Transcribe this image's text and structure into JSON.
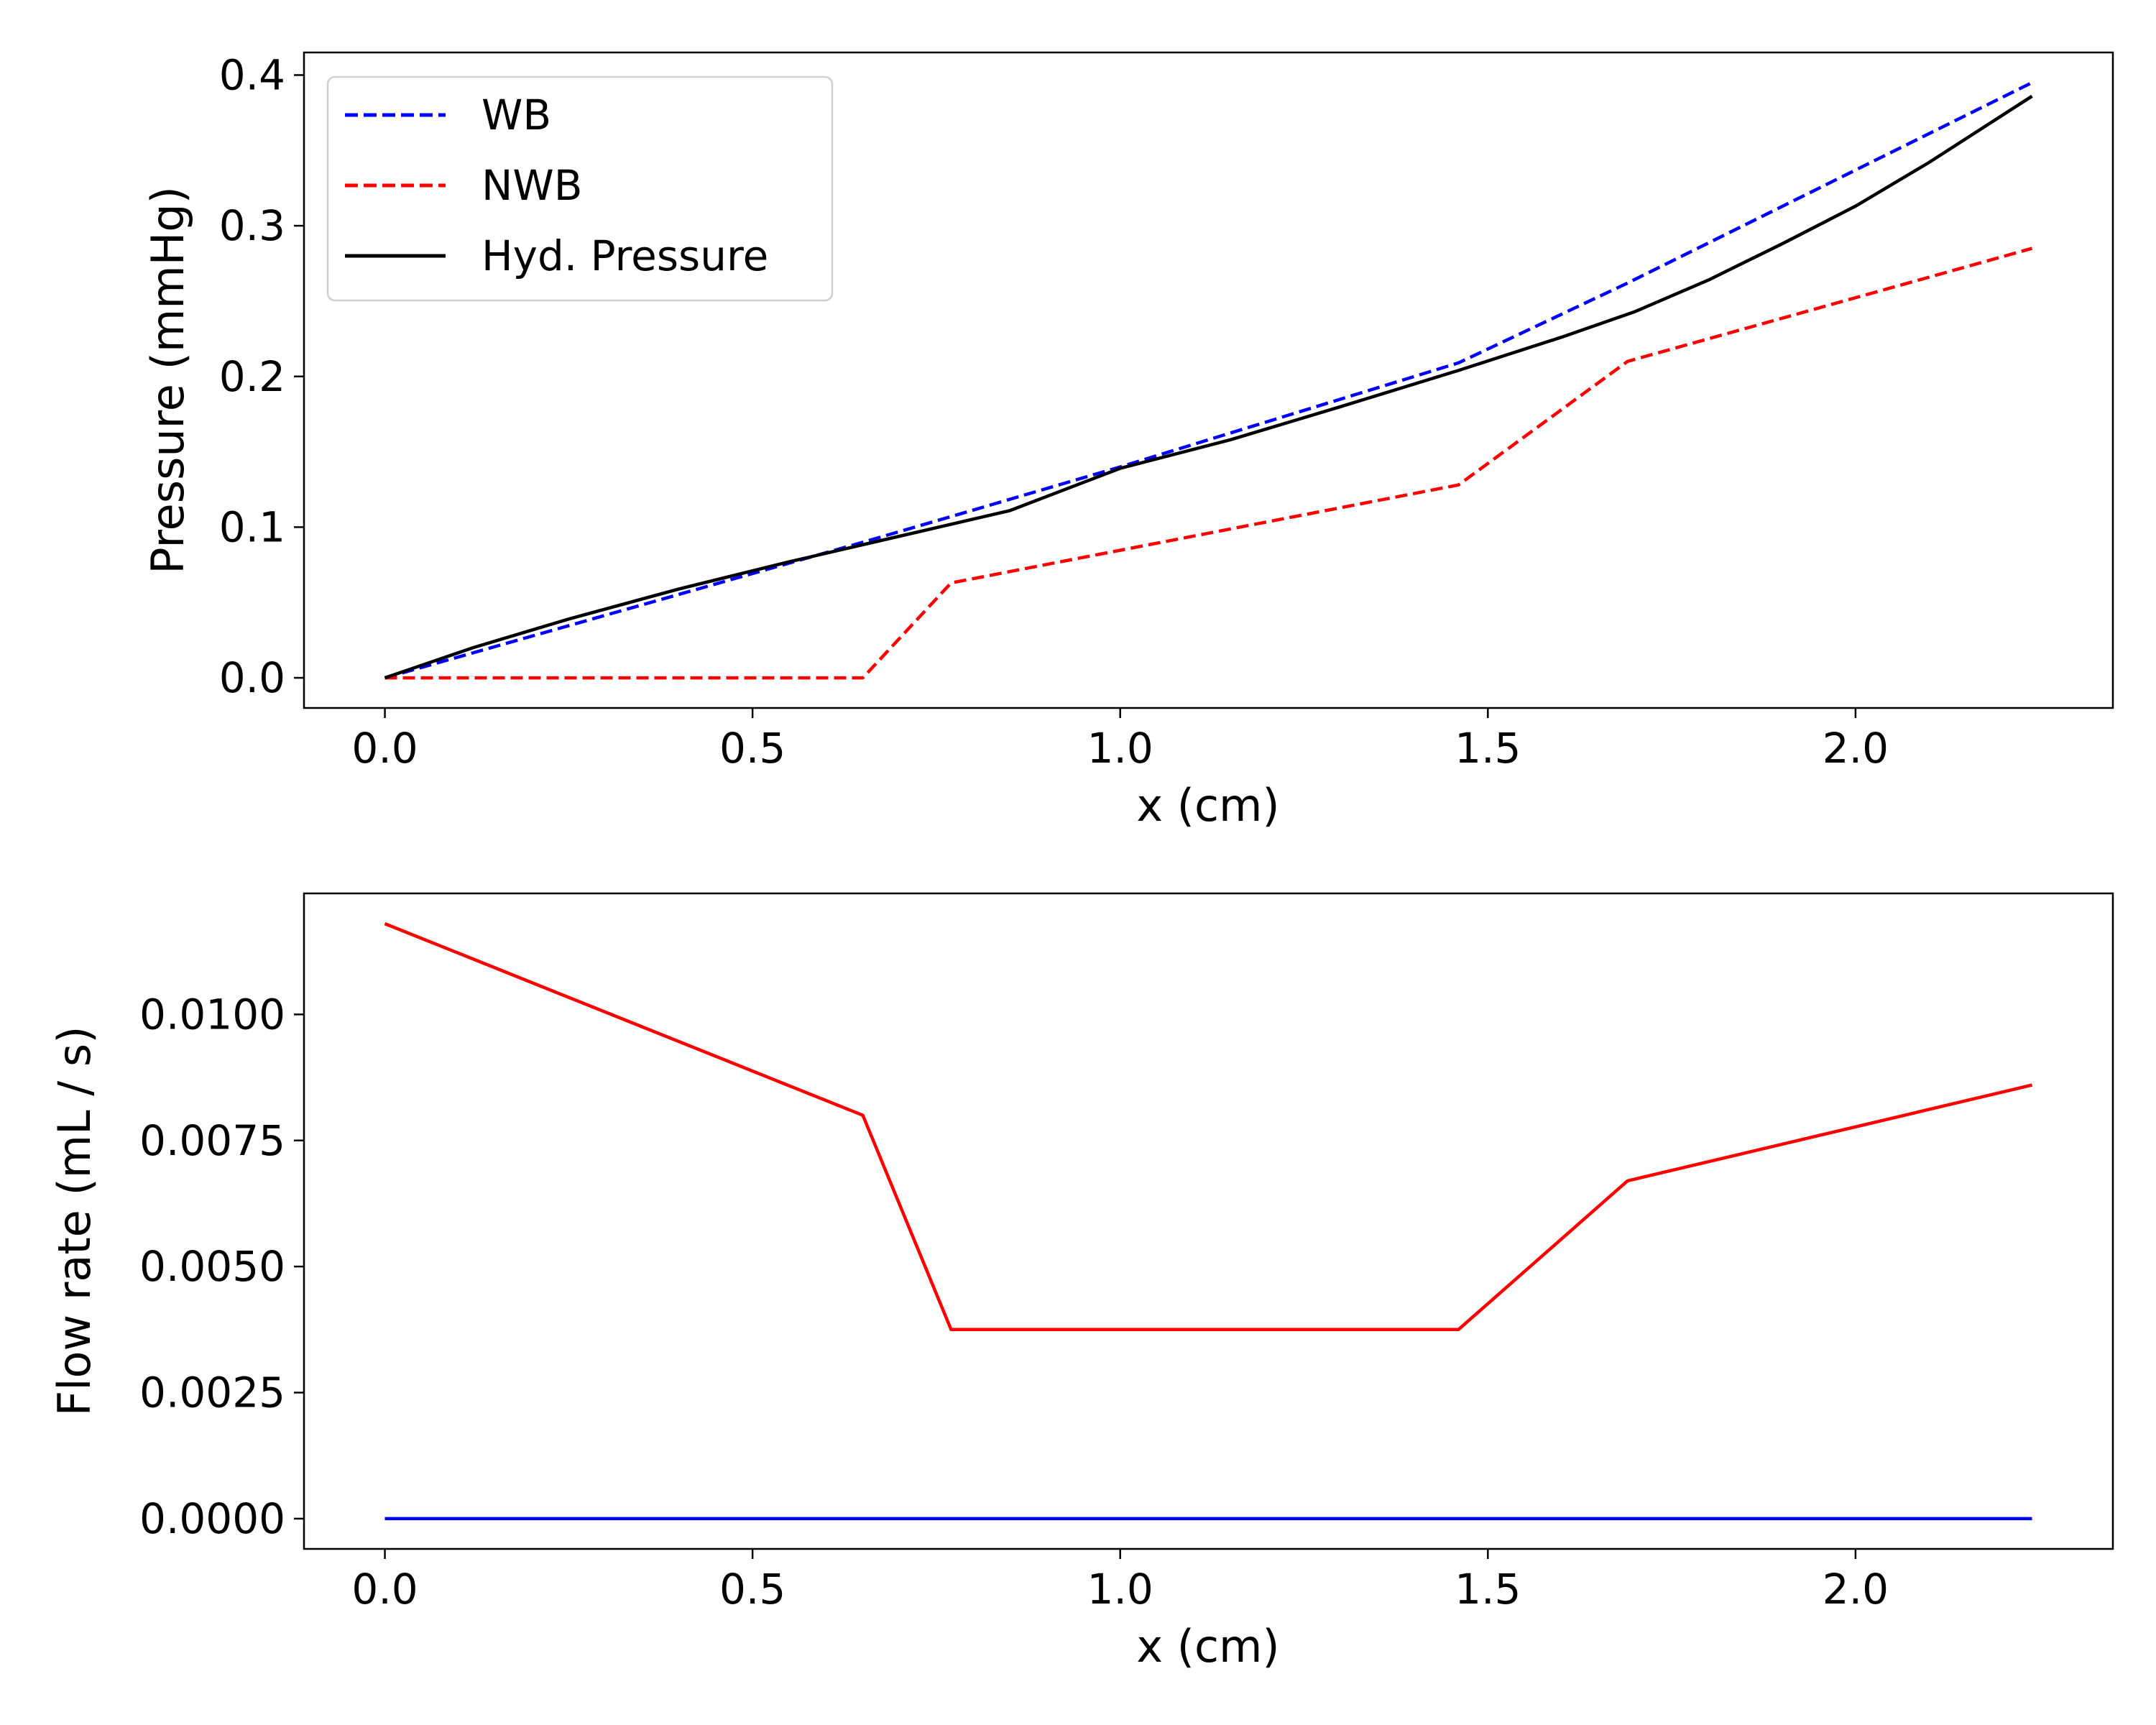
{
  "chart_data": [
    {
      "type": "line",
      "title": "",
      "xlabel": "x (cm)",
      "ylabel": "Pressure (mmHg)",
      "xlim": [
        -0.11,
        2.35
      ],
      "ylim": [
        -0.02,
        0.415
      ],
      "xticks": [
        0.0,
        0.5,
        1.0,
        1.5,
        2.0
      ],
      "xtick_labels": [
        "0.0",
        "0.5",
        "1.0",
        "1.5",
        "2.0"
      ],
      "yticks": [
        0.0,
        0.1,
        0.2,
        0.3,
        0.4
      ],
      "ytick_labels": [
        "0.0",
        "0.1",
        "0.2",
        "0.3",
        "0.4"
      ],
      "grid": false,
      "legend": "top-left",
      "series": [
        {
          "name": "WB",
          "color": "#0000ff",
          "style": "dashed",
          "x": [
            0.0,
            0.65,
            0.77,
            1.0,
            1.46,
            1.69,
            2.24
          ],
          "values": [
            0.0,
            0.09,
            0.107,
            0.14,
            0.209,
            0.262,
            0.395
          ]
        },
        {
          "name": "NWB",
          "color": "#ff0000",
          "style": "dashed",
          "x": [
            0.0,
            0.65,
            0.77,
            1.46,
            1.69,
            2.24
          ],
          "values": [
            0.0,
            0.0,
            0.063,
            0.128,
            0.21,
            0.285
          ]
        },
        {
          "name": "Hyd. Pressure",
          "color": "#000000",
          "style": "solid",
          "x": [
            0.0,
            0.12,
            0.25,
            0.4,
            0.55,
            0.7,
            0.85,
            1.0,
            1.15,
            1.3,
            1.46,
            1.6,
            1.7,
            1.8,
            1.9,
            2.0,
            2.1,
            2.24
          ],
          "values": [
            0.0,
            0.02,
            0.039,
            0.059,
            0.077,
            0.094,
            0.111,
            0.139,
            0.158,
            0.18,
            0.204,
            0.226,
            0.243,
            0.264,
            0.288,
            0.313,
            0.342,
            0.386
          ]
        }
      ]
    },
    {
      "type": "line",
      "title": "",
      "xlabel": "x (cm)",
      "ylabel": "Flow rate (mL / s)",
      "xlim": [
        -0.11,
        2.35
      ],
      "ylim": [
        -0.0006,
        0.0124
      ],
      "xticks": [
        0.0,
        0.5,
        1.0,
        1.5,
        2.0
      ],
      "xtick_labels": [
        "0.0",
        "0.5",
        "1.0",
        "1.5",
        "2.0"
      ],
      "yticks": [
        0.0,
        0.0025,
        0.005,
        0.0075,
        0.01
      ],
      "ytick_labels": [
        "0.0000",
        "0.0025",
        "0.0050",
        "0.0075",
        "0.0100"
      ],
      "grid": false,
      "series": [
        {
          "name": "NWB",
          "color": "#ff0000",
          "style": "solid",
          "x": [
            0.0,
            0.65,
            0.77,
            1.46,
            1.69,
            2.24
          ],
          "values": [
            0.0118,
            0.008,
            0.00375,
            0.00375,
            0.0067,
            0.0086
          ]
        },
        {
          "name": "WB",
          "color": "#0000ff",
          "style": "solid",
          "x": [
            0.0,
            2.24
          ],
          "values": [
            0.0,
            0.0
          ]
        }
      ]
    }
  ]
}
